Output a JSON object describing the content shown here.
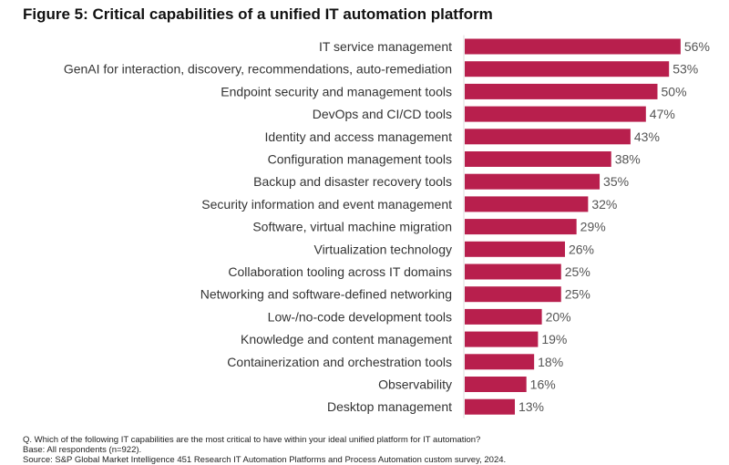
{
  "chart_data": {
    "type": "bar",
    "orientation": "horizontal",
    "title": "Figure 5: Critical capabilities of a unified IT automation platform",
    "categories": [
      "IT service management",
      "GenAI for interaction, discovery, recommendations, auto-remediation",
      "Endpoint security and management tools",
      "DevOps and CI/CD tools",
      "Identity and access management",
      "Configuration management tools",
      "Backup and disaster recovery tools",
      "Security information and event management",
      "Software, virtual machine migration",
      "Virtualization technology",
      "Collaboration tooling across IT domains",
      "Networking and software-defined networking",
      "Low-/no-code development tools",
      "Knowledge and content management",
      "Containerization and orchestration tools",
      "Observability",
      "Desktop management"
    ],
    "values": [
      56,
      53,
      50,
      47,
      43,
      38,
      35,
      32,
      29,
      26,
      25,
      25,
      20,
      19,
      18,
      16,
      13
    ],
    "value_suffix": "%",
    "xlim": [
      0,
      60
    ],
    "grid": false,
    "bar_color": "#b81f4d"
  },
  "notes": {
    "question": "Q. Which of the following IT capabilities are the most critical to have within your ideal unified platform for IT automation?",
    "base": "Base: All respondents (n=922).",
    "source": "Source: S&P Global Market Intelligence 451 Research IT Automation Platforms and Process Automation custom survey, 2024."
  }
}
